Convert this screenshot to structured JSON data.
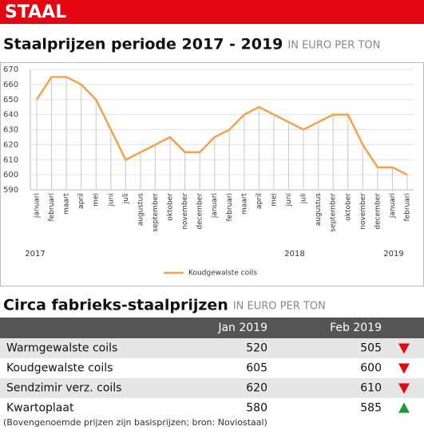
{
  "header": {
    "title": "STAAL"
  },
  "chart_data": {
    "type": "line",
    "title": "Staalprijzen periode 2017 - 2019",
    "subtitle": "IN EURO PER TON",
    "categories": [
      "januari",
      "februari",
      "maart",
      "april",
      "mei",
      "juni",
      "juli",
      "augustus",
      "september",
      "oktober",
      "november",
      "december",
      "januari",
      "februari",
      "maart",
      "april",
      "mei",
      "juni",
      "juli",
      "augustus",
      "september",
      "oktober",
      "november",
      "december",
      "januari",
      "februari"
    ],
    "year_labels": [
      "2017",
      "2018",
      "2019"
    ],
    "series": [
      {
        "name": "Koudgewalste coils",
        "color": "#f5a04a",
        "values": [
          650,
          665,
          665,
          660,
          650,
          630,
          610,
          615,
          620,
          625,
          615,
          615,
          625,
          630,
          640,
          645,
          640,
          635,
          630,
          635,
          640,
          640,
          620,
          605,
          605,
          600
        ]
      }
    ],
    "ylim": [
      590,
      670
    ],
    "yticks": [
      590,
      600,
      610,
      620,
      630,
      640,
      650,
      660,
      670
    ],
    "grid": true,
    "legend": "bottom"
  },
  "table": {
    "title": "Circa fabrieks-staalprijzen",
    "subtitle": "IN EURO PER TON",
    "columns": [
      "Jan 2019",
      "Feb 2019"
    ],
    "rows": [
      [
        "Warmgewalste coils",
        520,
        505,
        "down"
      ],
      [
        "Koudgewalste coils",
        605,
        600,
        "down"
      ],
      [
        "Sendzimir verz. coils",
        620,
        610,
        "down"
      ],
      [
        "Kwartoplaat",
        580,
        585,
        "up"
      ]
    ],
    "footnote": "(Bovengenoemde prijzen zijn basisprijzen; bron: Noviostaal)"
  }
}
